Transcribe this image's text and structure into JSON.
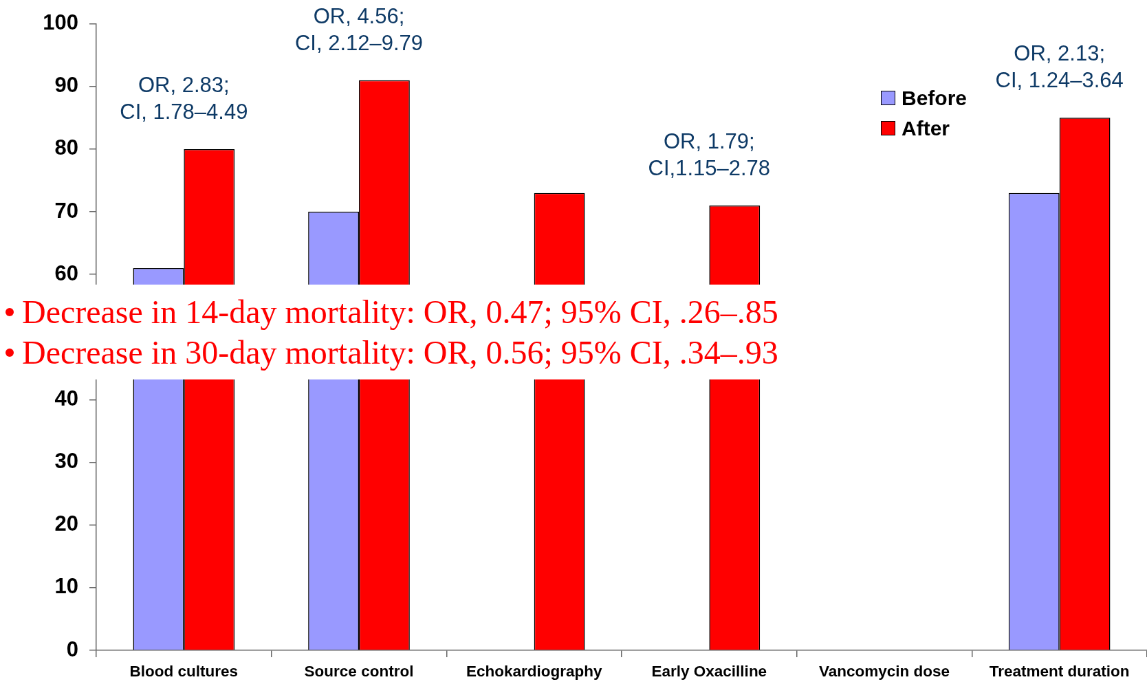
{
  "chart_data": {
    "type": "bar",
    "categories": [
      "Blood cultures",
      "Source control",
      "Echokardiography",
      "Early Oxacilline",
      "Vancomycin dose",
      "Treatment duration"
    ],
    "series": [
      {
        "name": "Before",
        "color": "#9999ff",
        "values": [
          61,
          70,
          null,
          null,
          null,
          73
        ]
      },
      {
        "name": "After",
        "color": "#ff0000",
        "values": [
          80,
          91,
          73,
          71,
          null,
          85
        ]
      }
    ],
    "ylim": [
      0,
      100
    ],
    "yticks": [
      0,
      10,
      20,
      30,
      40,
      60,
      70,
      80,
      90,
      100
    ],
    "legend": "top right",
    "annotations": [
      {
        "text": "OR, 2.83;\nCI, 1.78–4.49",
        "x": "Blood cultures",
        "y": 80
      },
      {
        "text": "OR, 4.56;\nCI, 2.12–9.79",
        "x": "Source control",
        "y": 91
      },
      {
        "text": "OR, 1.79;\nCI,1.15–2.78",
        "x": "Early Oxacilline",
        "y": 71
      },
      {
        "text": "OR, 2.13;\nCI, 1.24–3.64",
        "x": "Treatment duration",
        "y": 85
      },
      "Decrease in 14-day mortality: OR, 0.47; 95% CI, .26–.85",
      "Decrease in 30-day mortality: OR, 0.56; 95% CI, .34–.93"
    ]
  }
}
